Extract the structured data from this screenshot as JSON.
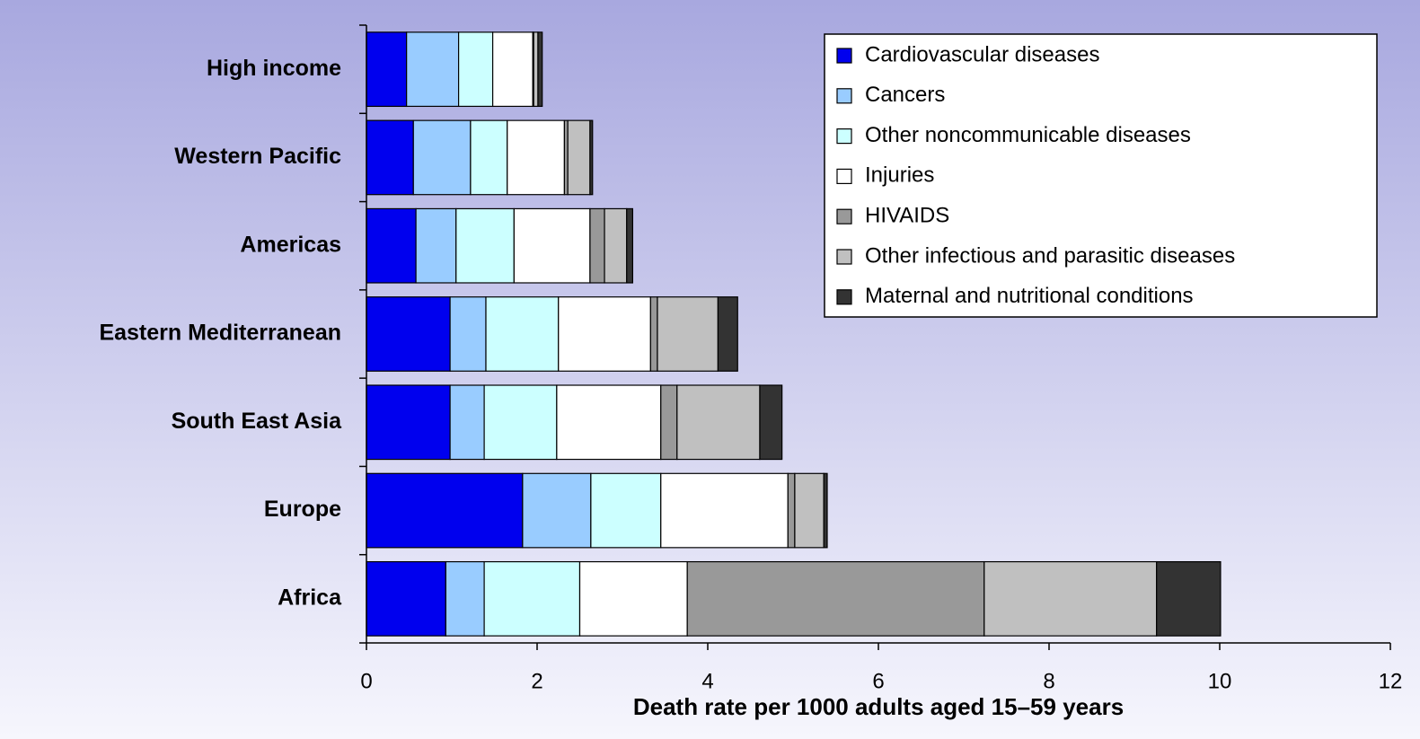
{
  "chart_data": {
    "type": "stacked_barh",
    "xlabel": "Death rate per 1000 adults aged 15–59 years",
    "categories": [
      "High income",
      "Western Pacific",
      "Americas",
      "Eastern Mediterranean",
      "South East Asia",
      "Europe",
      "Africa"
    ],
    "series": [
      {
        "name": "Cardiovascular diseases",
        "color": "#0000ee",
        "values": [
          0.47,
          0.55,
          0.58,
          0.98,
          0.98,
          1.83,
          0.93
        ]
      },
      {
        "name": "Cancers",
        "color": "#99ccff",
        "values": [
          0.61,
          0.67,
          0.47,
          0.42,
          0.4,
          0.8,
          0.45
        ]
      },
      {
        "name": "Other noncommunicable diseases",
        "color": "#ccffff",
        "values": [
          0.4,
          0.43,
          0.68,
          0.85,
          0.85,
          0.82,
          1.12
        ]
      },
      {
        "name": "Injuries",
        "color": "#ffffff",
        "values": [
          0.47,
          0.67,
          0.89,
          1.08,
          1.22,
          1.49,
          1.26
        ]
      },
      {
        "name": "HIVAIDS",
        "color": "#999999",
        "values": [
          0.01,
          0.04,
          0.17,
          0.08,
          0.19,
          0.08,
          3.48
        ]
      },
      {
        "name": "Other infectious and parasitic diseases",
        "color": "#c0c0c0",
        "values": [
          0.05,
          0.26,
          0.26,
          0.71,
          0.97,
          0.34,
          2.02
        ]
      },
      {
        "name": "Maternal and nutritional conditions",
        "color": "#333333",
        "values": [
          0.05,
          0.03,
          0.07,
          0.23,
          0.26,
          0.04,
          0.75
        ]
      }
    ],
    "xlim": [
      0,
      12
    ],
    "xticks": [
      0,
      2,
      4,
      6,
      8,
      10,
      12
    ],
    "legend": "upper right"
  }
}
